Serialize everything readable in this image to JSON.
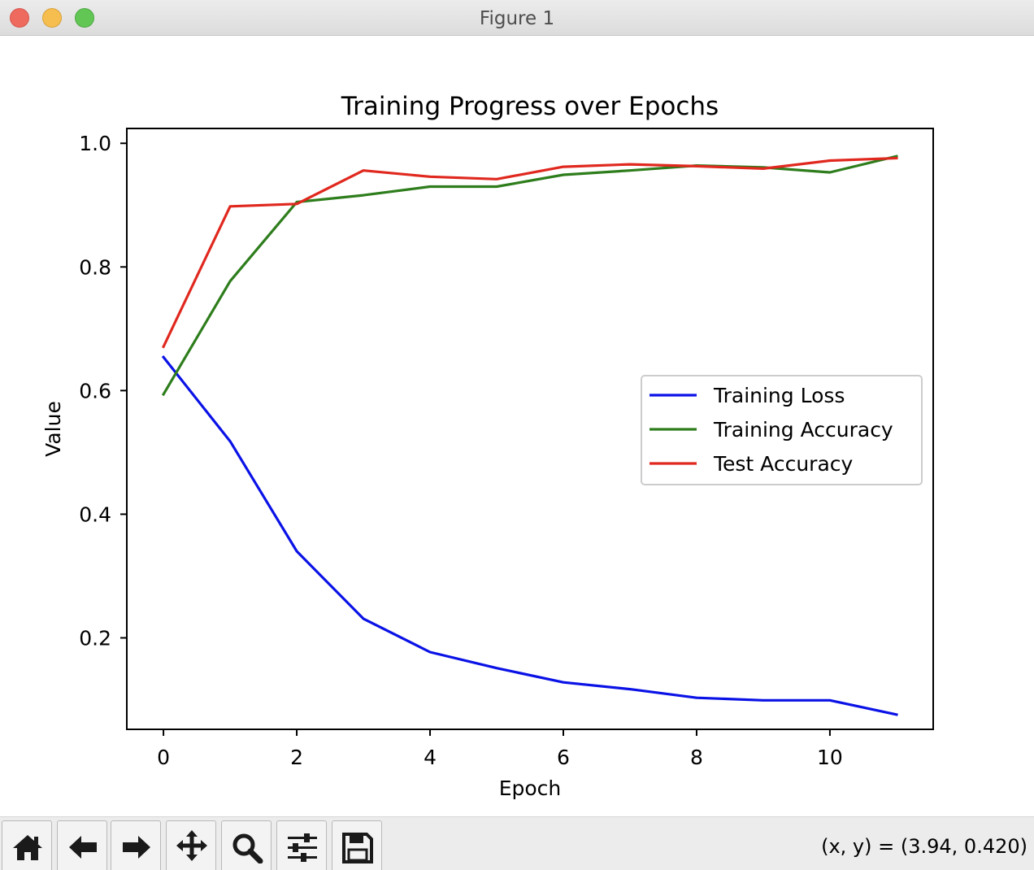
{
  "window": {
    "title": "Figure 1"
  },
  "chart_data": {
    "type": "line",
    "title": "Training Progress over Epochs",
    "xlabel": "Epoch",
    "ylabel": "Value",
    "x": [
      0,
      1,
      2,
      3,
      4,
      5,
      6,
      7,
      8,
      9,
      10,
      11
    ],
    "xlim": [
      -0.55,
      11.55
    ],
    "ylim": [
      0.052,
      1.024
    ],
    "xticks": [
      0,
      2,
      4,
      6,
      8,
      10
    ],
    "yticks": [
      0.2,
      0.4,
      0.6,
      0.8,
      1.0
    ],
    "xtick_labels": [
      "0",
      "2",
      "4",
      "6",
      "8",
      "10"
    ],
    "ytick_labels": [
      "0.2",
      "0.4",
      "0.6",
      "0.8",
      "1.0"
    ],
    "grid": false,
    "legend_position": "center-right",
    "series": [
      {
        "name": "Training Loss",
        "color": "#0a12e6",
        "values": [
          0.654,
          0.518,
          0.34,
          0.231,
          0.177,
          0.151,
          0.128,
          0.117,
          0.103,
          0.099,
          0.099,
          0.076
        ]
      },
      {
        "name": "Training Accuracy",
        "color": "#2e7d1c",
        "values": [
          0.594,
          0.777,
          0.905,
          0.916,
          0.93,
          0.93,
          0.949,
          0.956,
          0.964,
          0.961,
          0.953,
          0.979
        ]
      },
      {
        "name": "Test Accuracy",
        "color": "#e0281e",
        "values": [
          0.671,
          0.898,
          0.902,
          0.956,
          0.946,
          0.942,
          0.962,
          0.966,
          0.963,
          0.959,
          0.972,
          0.976
        ]
      }
    ]
  },
  "toolbar": {
    "buttons": [
      {
        "name": "home-button",
        "icon": "home-icon"
      },
      {
        "name": "back-button",
        "icon": "arrow-left-icon"
      },
      {
        "name": "forward-button",
        "icon": "arrow-right-icon"
      },
      {
        "name": "pan-button",
        "icon": "move-icon"
      },
      {
        "name": "zoom-button",
        "icon": "magnifier-icon"
      },
      {
        "name": "subplots-button",
        "icon": "sliders-icon"
      },
      {
        "name": "save-button",
        "icon": "floppy-icon"
      }
    ],
    "coordinates": "(x, y) = (3.94, 0.420)"
  }
}
